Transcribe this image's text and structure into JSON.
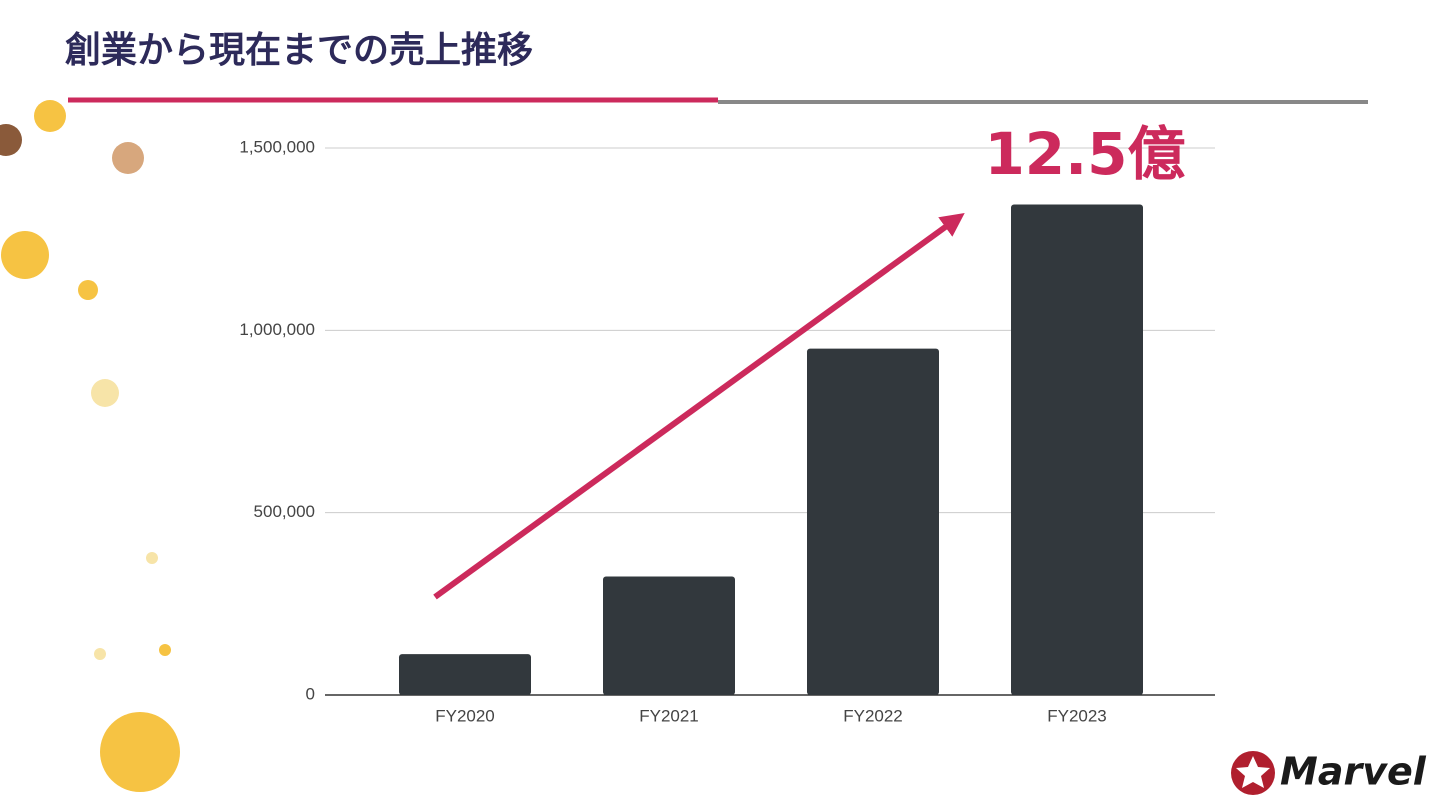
{
  "chart_data": {
    "type": "bar",
    "title": "創業から現在までの売上推移",
    "annotation": "12.5億",
    "categories": [
      "FY2020",
      "FY2021",
      "FY2022",
      "FY2023"
    ],
    "values": [
      112000,
      325000,
      950000,
      1345000
    ],
    "color": "#32383d",
    "ylim": [
      0,
      1500000
    ],
    "yticks": [
      0,
      {
        "value": 500000,
        "label": "500,000"
      },
      {
        "value": 1000000,
        "label": "1,000,000"
      },
      {
        "value": 1500000,
        "label": "1,500,000"
      }
    ],
    "grid": true
  },
  "logo": "Marvel"
}
